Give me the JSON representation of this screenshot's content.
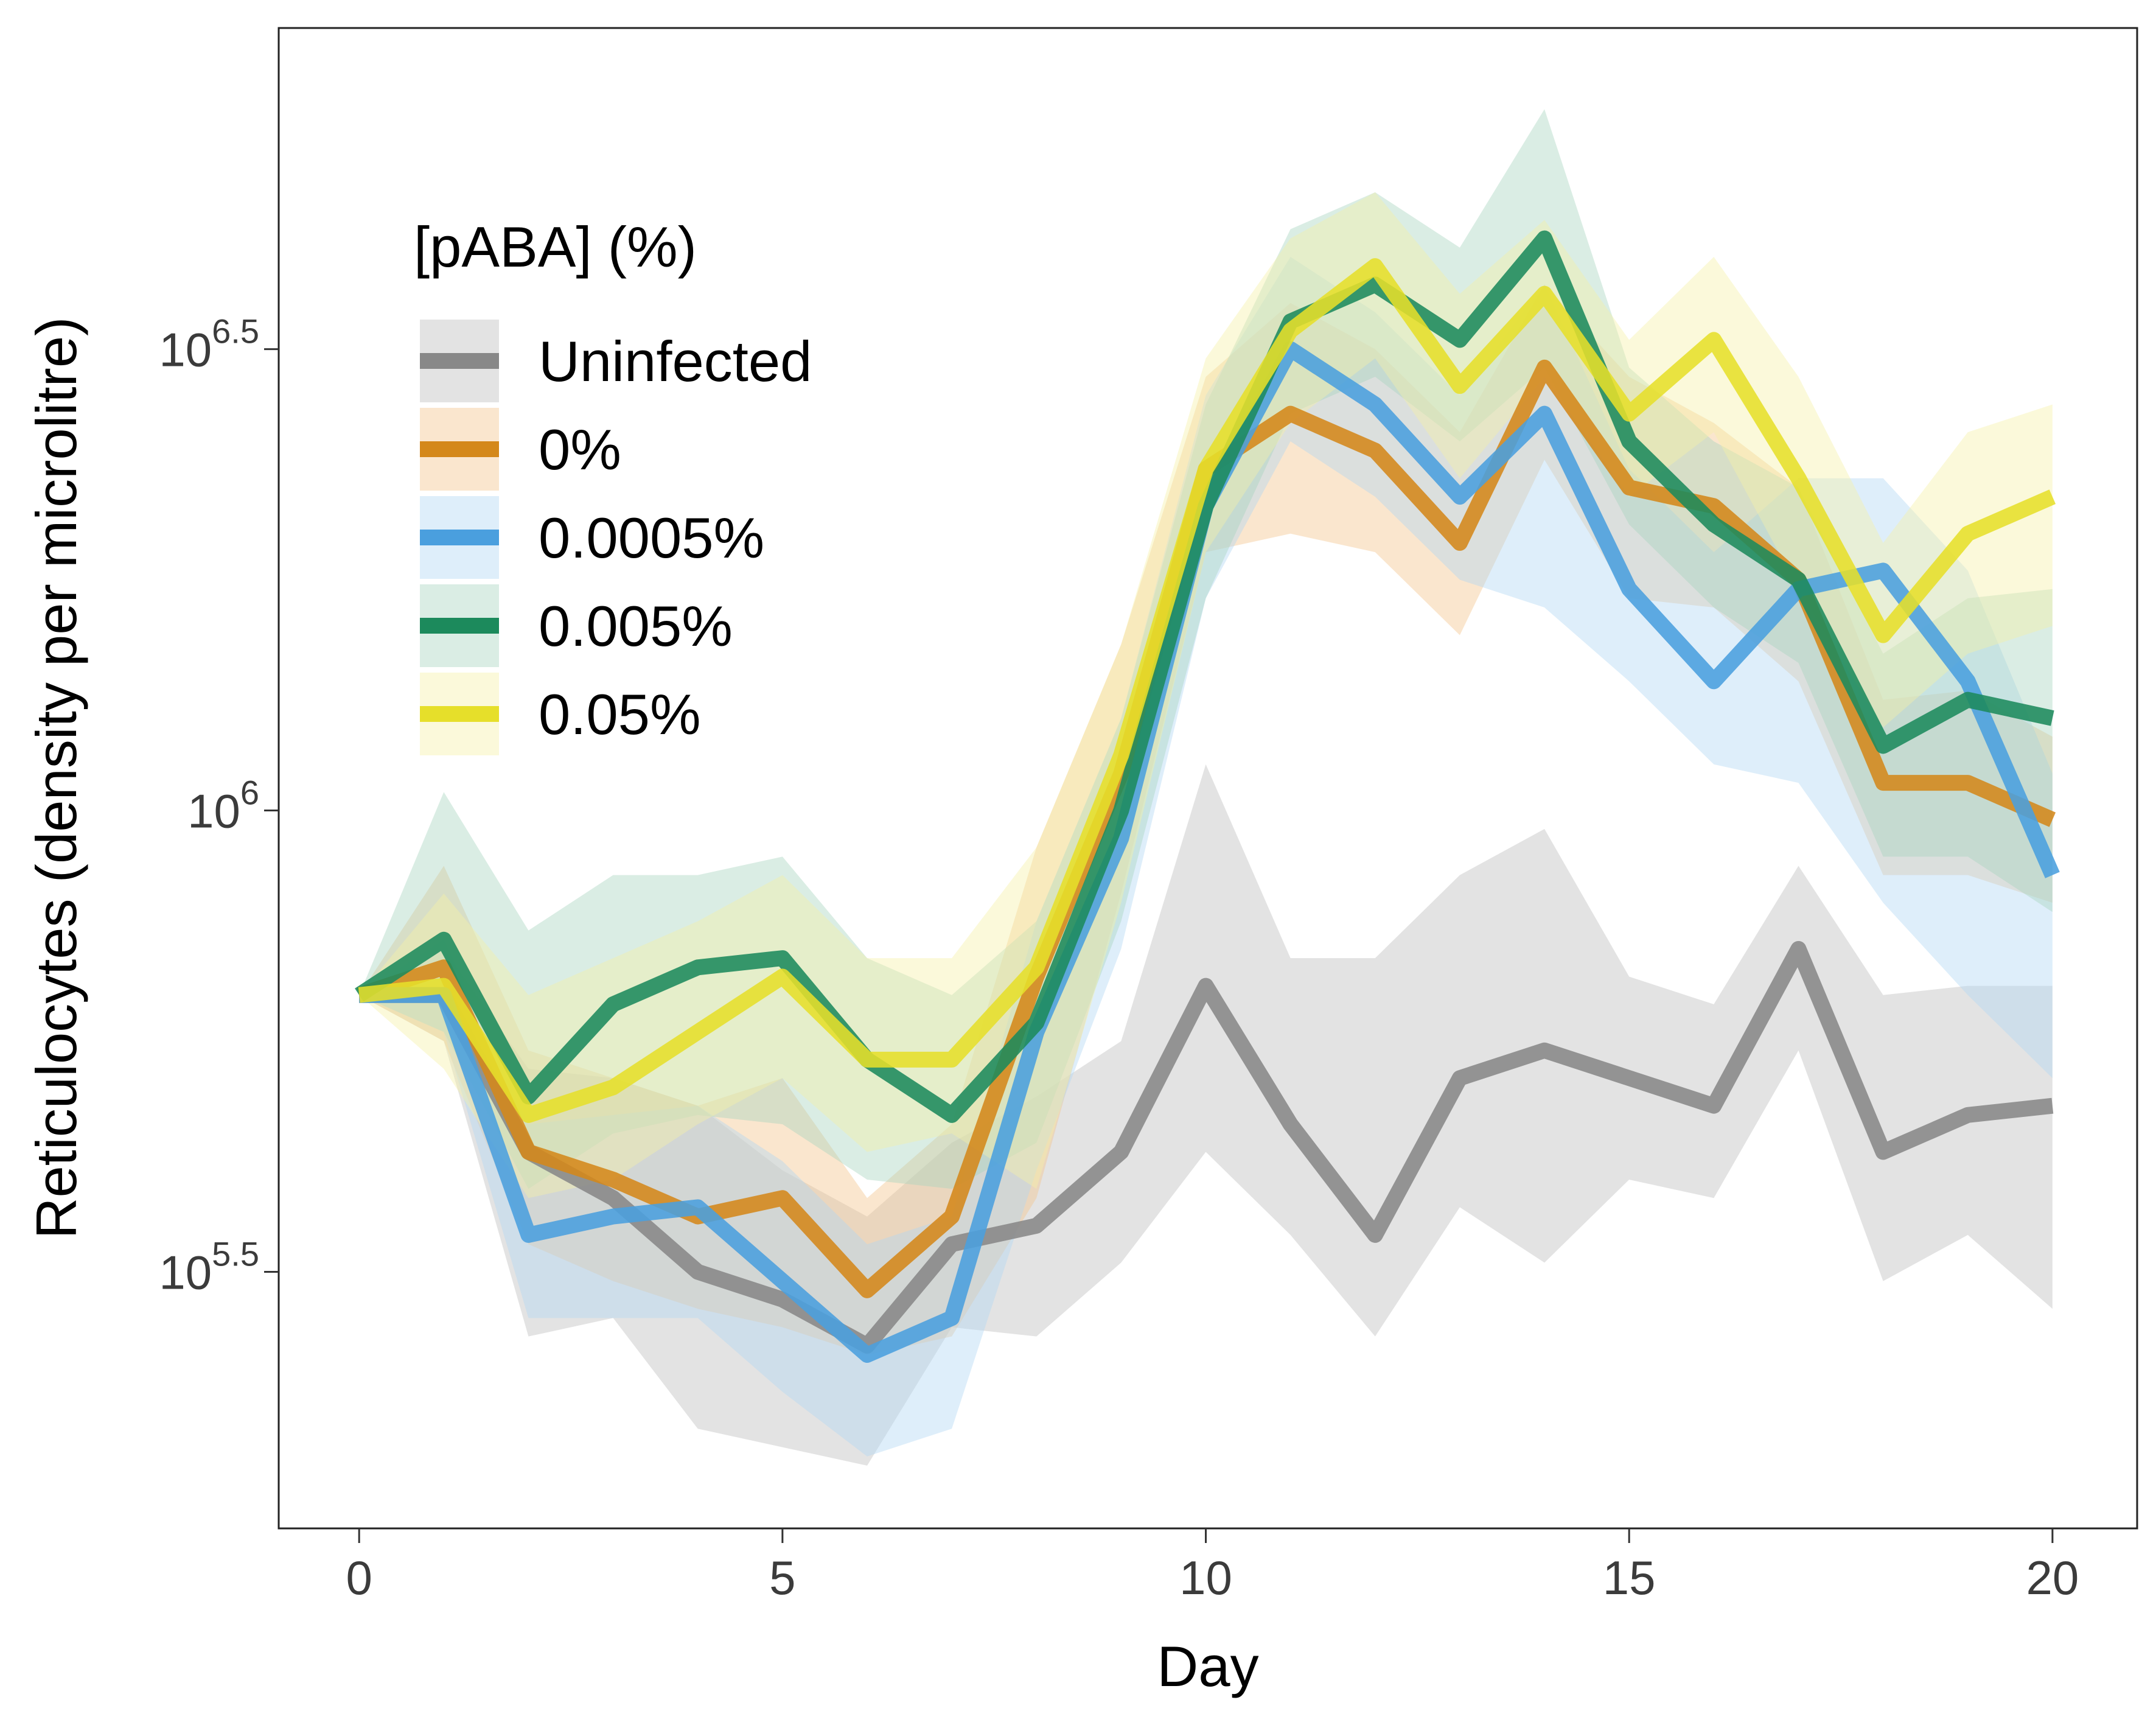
{
  "chart_data": {
    "type": "line",
    "xlabel": "Day",
    "ylabel": "Reticulocytes (density per microlitre)",
    "xlim": [
      -0.95,
      21.0
    ],
    "ylim": [
      5.222,
      6.848
    ],
    "y_scale": "log10",
    "x_ticks": [
      0,
      5,
      10,
      15,
      20
    ],
    "y_ticks": [
      {
        "value": 5.5,
        "label_base": "10",
        "label_exp": "5.5"
      },
      {
        "value": 6.0,
        "label_base": "10",
        "label_exp": "6"
      },
      {
        "value": 6.5,
        "label_base": "10",
        "label_exp": "6.5"
      }
    ],
    "grid": false,
    "legend": {
      "title": "[pABA] (%)",
      "position": "top-left"
    },
    "x": [
      0,
      1,
      2,
      3,
      4,
      5,
      6,
      7,
      8,
      9,
      10,
      11,
      12,
      13,
      14,
      15,
      16,
      17,
      18,
      19,
      20
    ],
    "series": [
      {
        "name": "Uninfected",
        "color": "#888888",
        "band_color": "#bdbdbd",
        "values": [
          5.8,
          5.8,
          5.63,
          5.58,
          5.5,
          5.47,
          5.42,
          5.53,
          5.55,
          5.63,
          5.81,
          5.66,
          5.54,
          5.71,
          5.74,
          5.71,
          5.68,
          5.85,
          5.63,
          5.67,
          5.68
        ],
        "lower": [
          5.8,
          5.75,
          5.43,
          5.45,
          5.33,
          5.31,
          5.29,
          5.44,
          5.43,
          5.51,
          5.63,
          5.54,
          5.43,
          5.57,
          5.51,
          5.6,
          5.58,
          5.74,
          5.49,
          5.54,
          5.46
        ],
        "upper": [
          5.8,
          5.85,
          5.72,
          5.71,
          5.68,
          5.61,
          5.56,
          5.64,
          5.69,
          5.75,
          6.05,
          5.84,
          5.84,
          5.93,
          5.98,
          5.82,
          5.79,
          5.94,
          5.8,
          5.81,
          5.81
        ]
      },
      {
        "name": "0%",
        "color": "#d4881a",
        "band_color": "#f2c48a",
        "values": [
          5.8,
          5.83,
          5.63,
          5.6,
          5.56,
          5.58,
          5.48,
          5.56,
          5.82,
          6.04,
          6.37,
          6.43,
          6.39,
          6.29,
          6.48,
          6.35,
          6.33,
          6.25,
          6.03,
          6.03,
          5.99
        ],
        "lower": [
          5.8,
          5.75,
          5.53,
          5.49,
          5.46,
          5.44,
          5.41,
          5.43,
          5.58,
          5.91,
          6.28,
          6.3,
          6.28,
          6.19,
          6.38,
          6.23,
          6.22,
          6.14,
          5.93,
          5.93,
          5.9
        ],
        "upper": [
          5.8,
          5.94,
          5.74,
          5.71,
          5.68,
          5.71,
          5.58,
          5.66,
          5.96,
          6.18,
          6.47,
          6.55,
          6.5,
          6.41,
          6.57,
          6.47,
          6.42,
          6.35,
          6.12,
          6.13,
          6.08
        ]
      },
      {
        "name": "0.0005%",
        "color": "#4a9fde",
        "band_color": "#b0d6f2",
        "values": [
          5.8,
          5.8,
          5.54,
          5.56,
          5.57,
          5.49,
          5.41,
          5.45,
          5.76,
          5.97,
          6.33,
          6.5,
          6.44,
          6.34,
          6.43,
          6.24,
          6.14,
          6.24,
          6.26,
          6.14,
          5.93
        ],
        "lower": [
          5.8,
          5.76,
          5.45,
          5.45,
          5.45,
          5.37,
          5.3,
          5.33,
          5.61,
          5.85,
          6.23,
          6.4,
          6.34,
          6.25,
          6.22,
          6.14,
          6.05,
          6.03,
          5.9,
          5.8,
          5.71
        ],
        "upper": [
          5.8,
          5.86,
          5.66,
          5.67,
          5.68,
          5.62,
          5.53,
          5.56,
          5.88,
          6.1,
          6.45,
          6.6,
          6.54,
          6.45,
          6.57,
          6.37,
          6.28,
          6.36,
          6.36,
          6.26,
          6.04
        ]
      },
      {
        "name": "0.005%",
        "color": "#1c8a5c",
        "band_color": "#a8d4be",
        "values": [
          5.8,
          5.86,
          5.69,
          5.79,
          5.83,
          5.84,
          5.73,
          5.67,
          5.77,
          6.0,
          6.33,
          6.53,
          6.57,
          6.51,
          6.62,
          6.4,
          6.31,
          6.25,
          6.07,
          6.12,
          6.1
        ],
        "lower": [
          5.8,
          5.76,
          5.59,
          5.65,
          5.67,
          5.66,
          5.6,
          5.59,
          5.64,
          5.88,
          6.23,
          6.43,
          6.47,
          6.4,
          6.48,
          6.31,
          6.22,
          6.16,
          5.95,
          5.95,
          5.89
        ],
        "upper": [
          5.8,
          6.02,
          5.87,
          5.93,
          5.93,
          5.95,
          5.84,
          5.8,
          5.88,
          6.1,
          6.44,
          6.63,
          6.67,
          6.61,
          6.76,
          6.48,
          6.4,
          6.35,
          6.17,
          6.23,
          6.24
        ]
      },
      {
        "name": "0.05%",
        "color": "#e6df2a",
        "band_color": "#f5f0a8",
        "values": [
          5.8,
          5.81,
          5.67,
          5.7,
          5.76,
          5.82,
          5.73,
          5.73,
          5.83,
          6.06,
          6.37,
          6.52,
          6.59,
          6.46,
          6.56,
          6.43,
          6.51,
          6.36,
          6.19,
          6.3,
          6.34
        ],
        "lower": [
          5.8,
          5.72,
          5.58,
          5.6,
          5.66,
          5.71,
          5.63,
          5.65,
          5.59,
          5.9,
          6.28,
          6.42,
          6.49,
          6.36,
          6.47,
          6.34,
          6.41,
          6.24,
          6.09,
          6.17,
          6.2
        ],
        "upper": [
          5.8,
          5.91,
          5.8,
          5.84,
          5.88,
          5.93,
          5.84,
          5.84,
          5.96,
          6.18,
          6.49,
          6.62,
          6.67,
          6.56,
          6.64,
          6.51,
          6.6,
          6.47,
          6.29,
          6.41,
          6.44
        ]
      }
    ]
  }
}
